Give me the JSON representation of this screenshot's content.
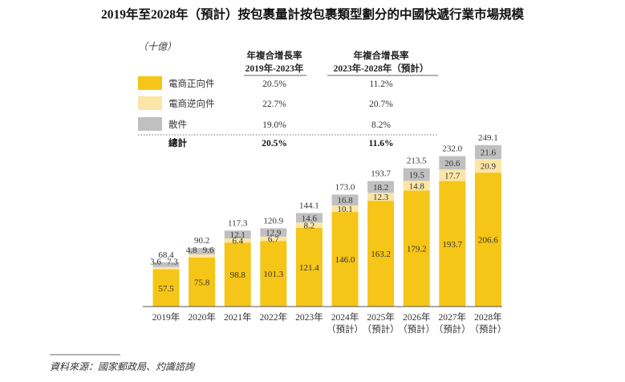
{
  "chart_data": {
    "type": "bar",
    "stacked": true,
    "title": "2019年至2028年（預計）按包裹量計按包裹類型劃分的中國快遞行業市場規模",
    "unit": "（十億）",
    "categories": [
      "2019年",
      "2020年",
      "2021年",
      "2022年",
      "2023年",
      "2024年",
      "2025年",
      "2026年",
      "2027年",
      "2028年"
    ],
    "category_notes": [
      "",
      "",
      "",
      "",
      "",
      "（預計）",
      "（預計）",
      "（預計）",
      "（預計）",
      "（預計）"
    ],
    "series": [
      {
        "name": "電商正向件",
        "color": "#F5C518",
        "values": [
          57.5,
          75.8,
          98.8,
          101.3,
          121.4,
          146.0,
          163.2,
          179.2,
          193.7,
          206.6
        ]
      },
      {
        "name": "電商逆向件",
        "color": "#FBE5A7",
        "values": [
          3.6,
          4.8,
          6.4,
          6.7,
          8.2,
          10.1,
          12.3,
          14.8,
          17.7,
          20.9
        ]
      },
      {
        "name": "散件",
        "color": "#C0C0C0",
        "values": [
          7.3,
          9.6,
          12.1,
          12.9,
          14.6,
          16.8,
          18.2,
          19.5,
          20.6,
          21.6
        ]
      }
    ],
    "totals": [
      68.4,
      90.2,
      117.3,
      120.9,
      144.1,
      173.0,
      193.7,
      213.5,
      232.0,
      249.1
    ],
    "ylim": [
      0,
      260
    ],
    "cagr_table": {
      "header_1": [
        "年複合增長率",
        "2019年-2023年"
      ],
      "header_2": [
        "年複合增長率",
        "2023年-2028年（預計）"
      ],
      "rows": [
        {
          "label": "電商正向件",
          "c1": "20.5%",
          "c2": "11.2%"
        },
        {
          "label": "電商逆向件",
          "c1": "22.7%",
          "c2": "20.7%"
        },
        {
          "label": "散件",
          "c1": "19.0%",
          "c2": "8.2%"
        }
      ],
      "total": {
        "label": "總計",
        "c1": "20.5%",
        "c2": "11.6%"
      }
    },
    "source": "資料來源：國家郵政局、灼識諮詢"
  }
}
